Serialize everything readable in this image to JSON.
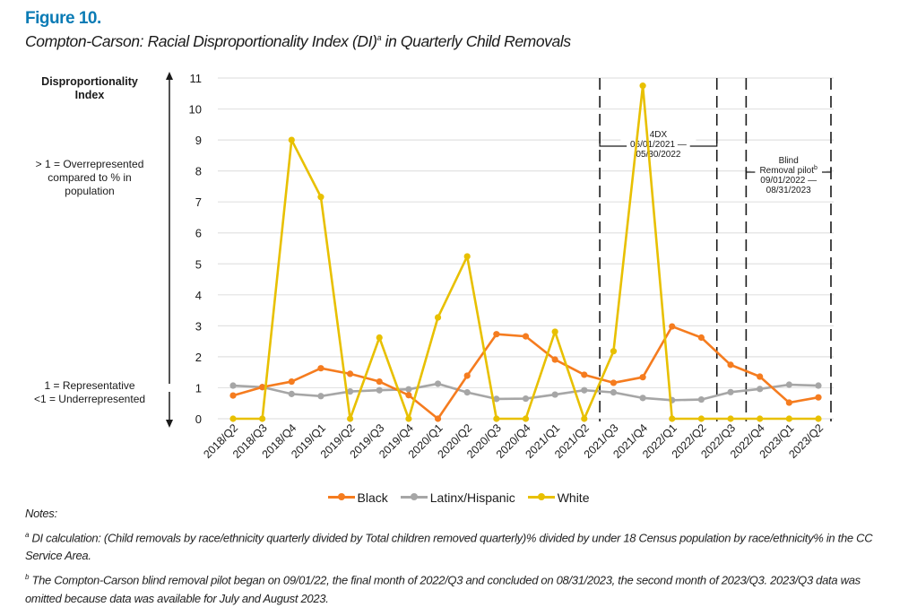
{
  "figure": {
    "label": "Figure 10.",
    "title": "Compton-Carson: Racial Disproportionality Index (DI)",
    "title_sup": "a",
    "title_suffix": " in Quarterly Child Removals"
  },
  "y_axis_annotations": {
    "title": "Disproportionality Index",
    "over_note": "> 1 = Overrepresented compared to % in population",
    "under_note_line1": "1 = Representative",
    "under_note_line2": "<1 = Underrepresented"
  },
  "colors": {
    "Black": "#f57c1f",
    "Latinx/Hispanic": "#a6a6a6",
    "White": "#e8c000",
    "figure_label": "#0a7bb5"
  },
  "chart_data": {
    "type": "line",
    "title": "Compton-Carson: Racial Disproportionality Index (DI) in Quarterly Child Removals",
    "xlabel": "",
    "ylabel": "Disproportionality Index",
    "ylim": [
      0,
      11
    ],
    "yticks": [
      0,
      1,
      2,
      3,
      4,
      5,
      6,
      7,
      8,
      9,
      10,
      11
    ],
    "grid": true,
    "legend_position": "bottom",
    "categories": [
      "2018/Q2",
      "2018/Q3",
      "2018/Q4",
      "2019/Q1",
      "2019/Q2",
      "2019/Q3",
      "2019/Q4",
      "2020/Q1",
      "2020/Q2",
      "2020/Q3",
      "2020/Q4",
      "2021/Q1",
      "2021/Q2",
      "2021/Q3",
      "2021/Q4",
      "2022/Q1",
      "2022/Q2",
      "2022/Q3",
      "2022/Q4",
      "2023/Q1",
      "2023/Q2"
    ],
    "series": [
      {
        "name": "Black",
        "values": [
          0.75,
          1.02,
          1.2,
          1.63,
          1.45,
          1.2,
          0.76,
          0.0,
          1.39,
          2.73,
          2.66,
          1.91,
          1.42,
          1.16,
          1.34,
          2.98,
          2.62,
          1.74,
          1.36,
          0.52,
          0.69
        ]
      },
      {
        "name": "Latinx/Hispanic",
        "values": [
          1.07,
          1.02,
          0.8,
          0.73,
          0.88,
          0.92,
          0.95,
          1.13,
          0.85,
          0.64,
          0.65,
          0.78,
          0.92,
          0.85,
          0.67,
          0.6,
          0.62,
          0.86,
          0.96,
          1.1,
          1.07
        ]
      },
      {
        "name": "White",
        "values": [
          0,
          0,
          9.0,
          7.16,
          0,
          2.62,
          0,
          3.27,
          5.24,
          0,
          0,
          2.81,
          0,
          2.18,
          10.75,
          0,
          0,
          0,
          0,
          0,
          0
        ]
      }
    ],
    "annotations": [
      {
        "label_lines": [
          "4DX",
          "06/01/2021 —",
          "05/30/2022"
        ],
        "start_between": [
          "2021/Q2",
          "2021/Q3"
        ],
        "end_between": [
          "2022/Q2",
          "2022/Q3"
        ]
      },
      {
        "label_lines": [
          "Blind",
          "Removal pilot",
          "09/01/2022 —",
          "08/31/2023"
        ],
        "label_sup_line": 1,
        "label_sup": "b",
        "start_between": [
          "2022/Q3",
          "2022/Q4"
        ],
        "end_after": "2023/Q2"
      }
    ]
  },
  "notes": {
    "heading": "Notes:",
    "items": [
      {
        "marker": "a",
        "text": " DI calculation: (Child removals by race/ethnicity quarterly divided by Total children removed quarterly)% divided by under 18 Census population by race/ethnicity% in the CC Service Area."
      },
      {
        "marker": "b",
        "text": " The Compton-Carson blind removal pilot began on 09/01/22, the final month of 2022/Q3 and concluded on 08/31/2023, the second month of 2023/Q3. 2023/Q3 data was omitted because data was available for July and August 2023."
      }
    ]
  }
}
